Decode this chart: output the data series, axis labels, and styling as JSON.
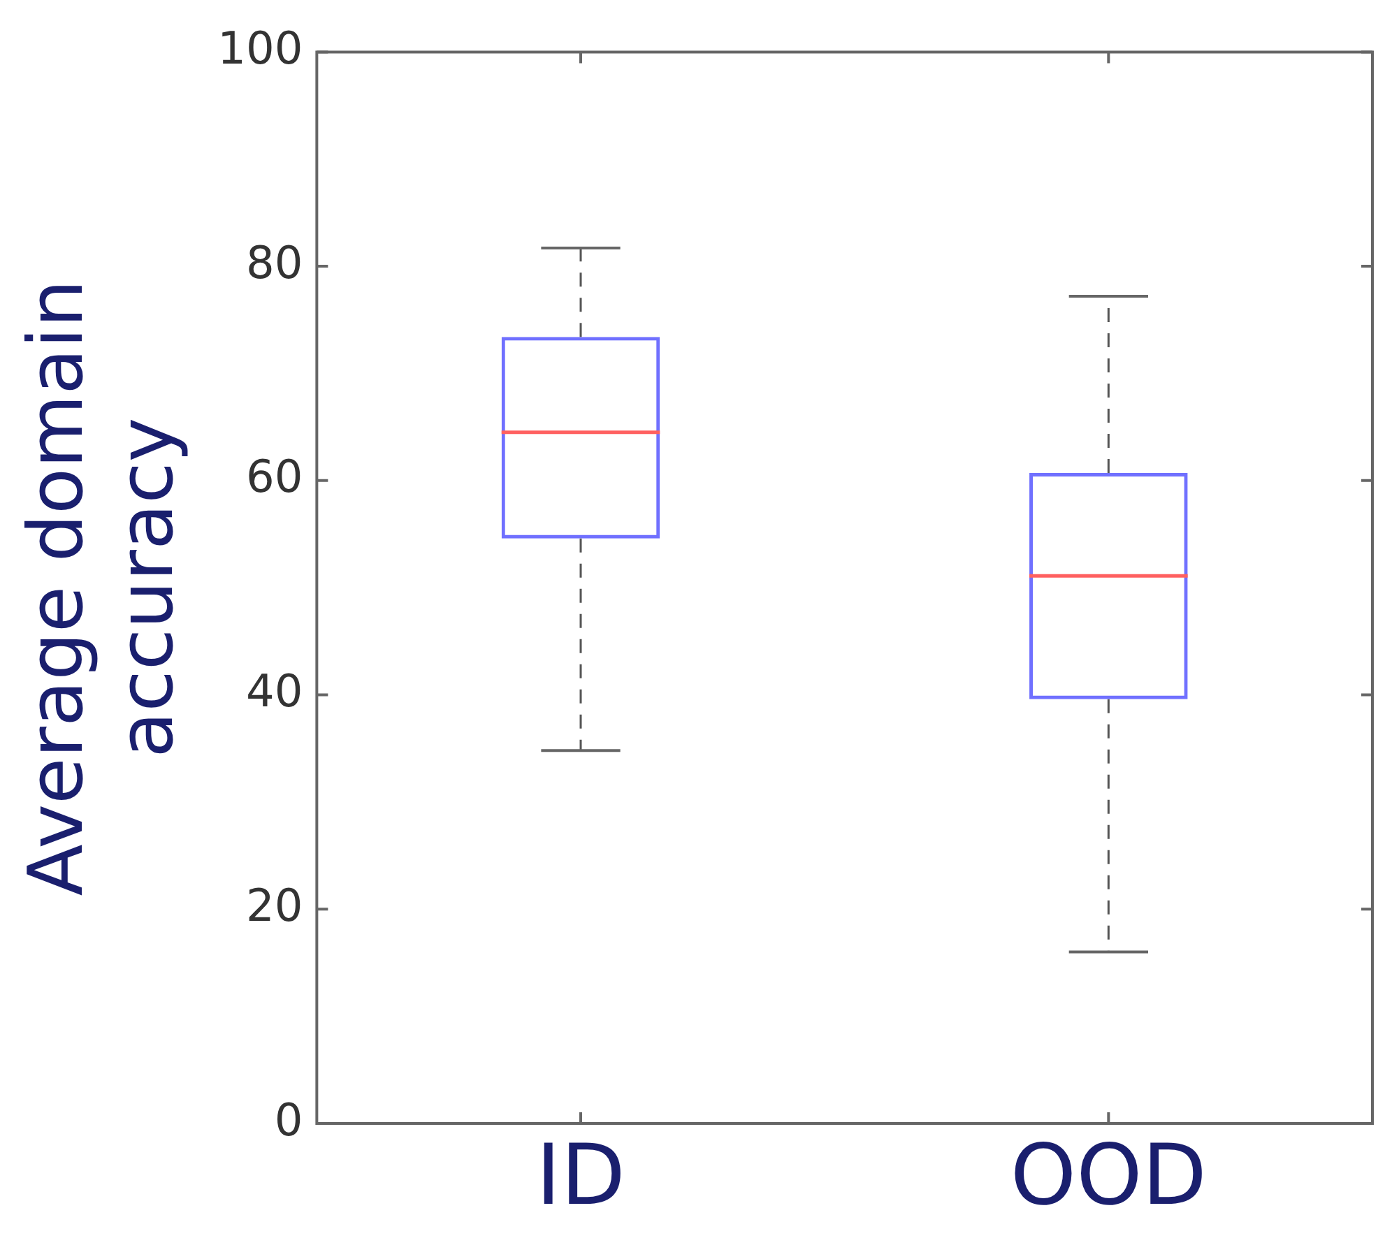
{
  "chart_data": {
    "type": "box",
    "ylabel": "Average domain accuracy",
    "categories": [
      "ID",
      "OOD"
    ],
    "color": "#7070ff",
    "boxes": [
      {
        "low": 34.8,
        "q1": 54.6,
        "median": 64.5,
        "q3": 73.4,
        "high": 81.7
      },
      {
        "low": 16.0,
        "q1": 39.6,
        "median": 51.1,
        "q3": 60.7,
        "high": 77.2
      }
    ],
    "ylim": [
      0,
      100
    ],
    "yticks": [
      0,
      20,
      40,
      60,
      80,
      100
    ],
    "grid": false,
    "legend": false
  }
}
